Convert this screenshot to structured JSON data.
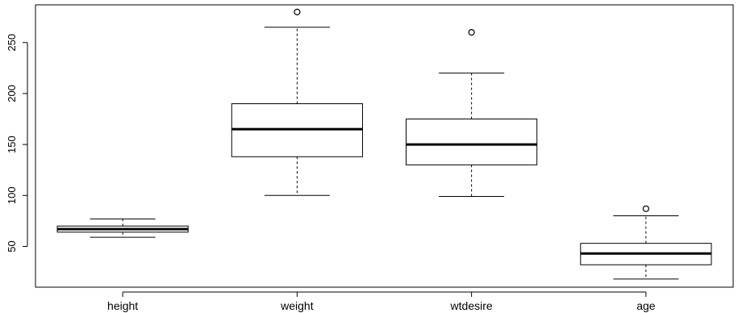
{
  "chart_data": {
    "type": "boxplot",
    "title": "",
    "xlabel": "",
    "ylabel": "",
    "ylim": [
      10,
      287
    ],
    "yticks": [
      50,
      100,
      150,
      200,
      250
    ],
    "grid": false,
    "legend": "none",
    "colors": {
      "box_fill": "#ffffff",
      "stroke": "#000000",
      "background": "#ffffff"
    },
    "categories": [
      "height",
      "weight",
      "wtdesire",
      "age"
    ],
    "boxes": [
      {
        "name": "height",
        "min": 59,
        "q1": 64,
        "median": 67,
        "q3": 70,
        "max": 77,
        "outliers": []
      },
      {
        "name": "weight",
        "min": 100,
        "q1": 138,
        "median": 165,
        "q3": 190,
        "max": 265,
        "outliers": [
          280
        ]
      },
      {
        "name": "wtdesire",
        "min": 99,
        "q1": 130,
        "median": 150,
        "q3": 175,
        "max": 220,
        "outliers": [
          260
        ]
      },
      {
        "name": "age",
        "min": 18,
        "q1": 32,
        "median": 43,
        "q3": 53,
        "max": 80,
        "outliers": [
          87
        ]
      }
    ]
  }
}
